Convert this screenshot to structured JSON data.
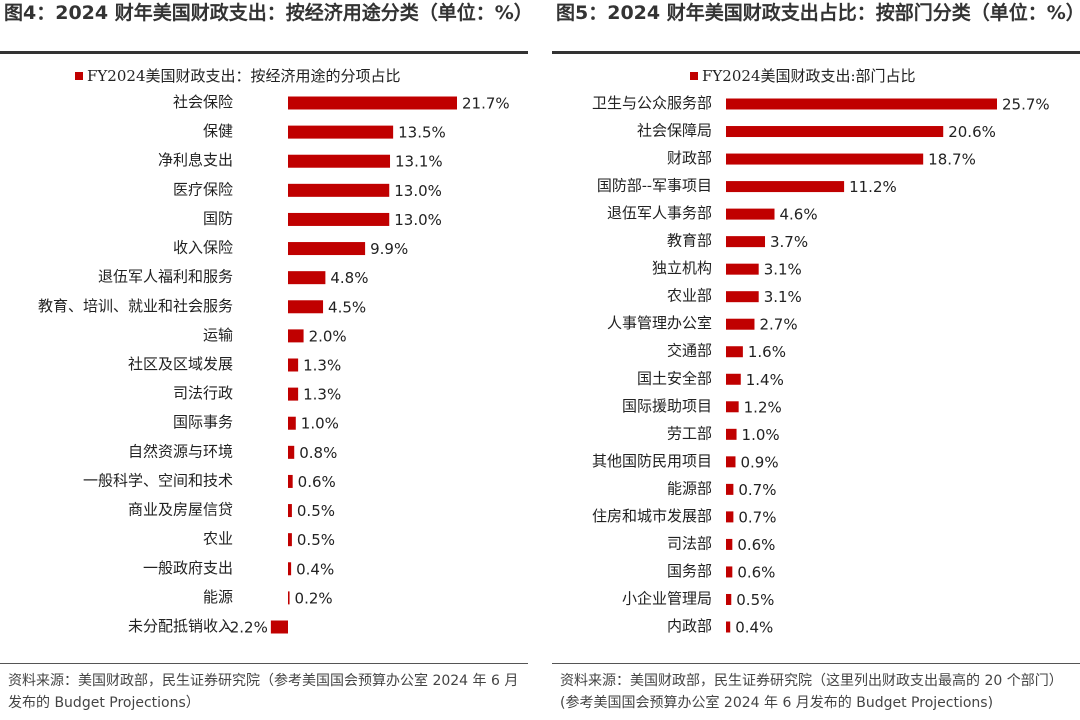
{
  "chart_data": [
    {
      "type": "bar",
      "orientation": "horizontal",
      "title": "图4：2024 财年美国财政支出：按经济用途分类（单位：%）",
      "categories": [
        "社会保险",
        "保健",
        "净利息支出",
        "医疗保险",
        "国防",
        "收入保险",
        "退伍军人福利和服务",
        "教育、培训、就业和社会服务",
        "运输",
        "社区及区域发展",
        "司法行政",
        "国际事务",
        "自然资源与环境",
        "一般科学、空间和技术",
        "商业及房屋信贷",
        "农业",
        "一般政府支出",
        "能源",
        "未分配抵销收入"
      ],
      "series": [
        {
          "name": "FY2024美国财政支出：按经济用途的分项占比",
          "color": "#c00000",
          "values": [
            21.7,
            13.5,
            13.1,
            13.0,
            13.0,
            9.9,
            4.8,
            4.5,
            2.0,
            1.3,
            1.3,
            1.0,
            0.8,
            0.6,
            0.5,
            0.5,
            0.4,
            0.2,
            -2.2
          ],
          "value_labels": [
            "21.7%",
            "13.5%",
            "13.1%",
            "13.0%",
            "13.0%",
            "9.9%",
            "4.8%",
            "4.5%",
            "2.0%",
            "1.3%",
            "1.3%",
            "1.0%",
            "0.8%",
            "0.6%",
            "0.5%",
            "0.5%",
            "0.4%",
            "0.2%",
            "-2.2%"
          ]
        }
      ],
      "source": "资料来源：美国财政部，民生证券研究院（参考美国国会预算办公室 2024 年 6 月发布的 Budget Projections）"
    },
    {
      "type": "bar",
      "orientation": "horizontal",
      "title": "图5：2024 财年美国财政支出占比：按部门分类（单位：%）",
      "categories": [
        "卫生与公众服务部",
        "社会保障局",
        "财政部",
        "国防部--军事项目",
        "退伍军人事务部",
        "教育部",
        "独立机构",
        "农业部",
        "人事管理办公室",
        "交通部",
        "国土安全部",
        "国际援助项目",
        "劳工部",
        "其他国防民用项目",
        "能源部",
        "住房和城市发展部",
        "司法部",
        "国务部",
        "小企业管理局",
        "内政部"
      ],
      "series": [
        {
          "name": "FY2024美国财政支出:部门占比",
          "color": "#c00000",
          "values": [
            25.7,
            20.6,
            18.7,
            11.2,
            4.6,
            3.7,
            3.1,
            3.1,
            2.7,
            1.6,
            1.4,
            1.2,
            1.0,
            0.9,
            0.7,
            0.7,
            0.6,
            0.6,
            0.5,
            0.4
          ],
          "value_labels": [
            "25.7%",
            "20.6%",
            "18.7%",
            "11.2%",
            "4.6%",
            "3.7%",
            "3.1%",
            "3.1%",
            "2.7%",
            "1.6%",
            "1.4%",
            "1.2%",
            "1.0%",
            "0.9%",
            "0.7%",
            "0.7%",
            "0.6%",
            "0.6%",
            "0.5%",
            "0.4%"
          ]
        }
      ],
      "source": "资料来源：美国财政部，民生证券研究院（这里列出财政支出最高的 20 个部门）(参考美国国会预算办公室 2024 年 6 月发布的 Budget Projections)"
    }
  ]
}
